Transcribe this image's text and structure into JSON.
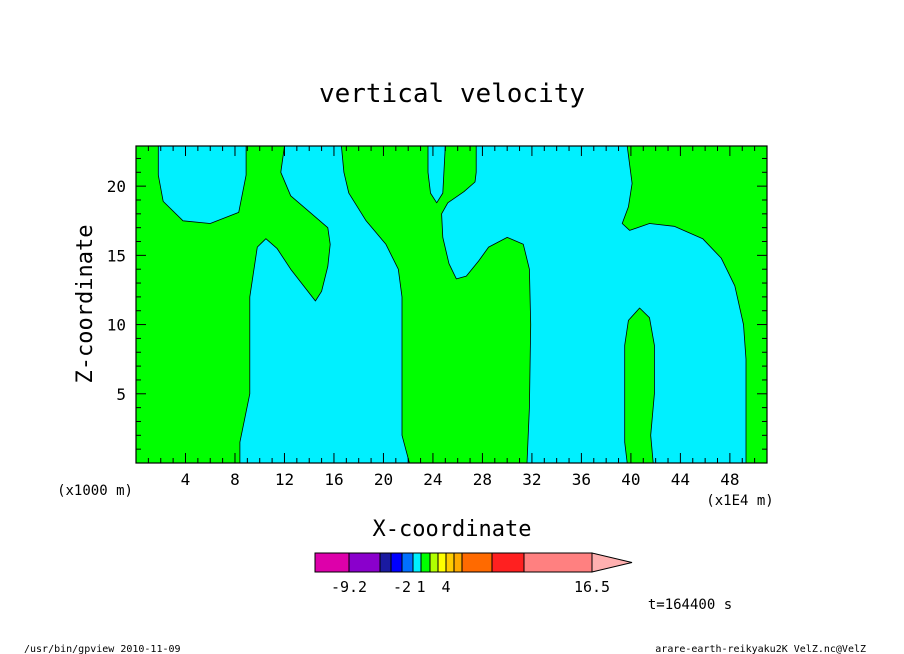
{
  "chart_data": {
    "type": "heatmap",
    "title": "vertical velocity",
    "xlabel": "X-coordinate",
    "ylabel": "Z-coordinate",
    "x_unit_left": "(x1000 m)",
    "x_unit_right": "(x1E4 m)",
    "xlim": [
      0,
      51
    ],
    "ylim": [
      0,
      22.9
    ],
    "x_ticks": [
      4,
      8,
      12,
      16,
      20,
      24,
      28,
      32,
      36,
      40,
      44,
      48
    ],
    "y_ticks": [
      5,
      10,
      15,
      20
    ],
    "regions_colors": {
      "positive": "#00ff00",
      "negative": "#00f0ff"
    },
    "negative_regions": [
      {
        "name": "neg-region-1",
        "outline": [
          [
            1.8,
            22.9
          ],
          [
            8.9,
            22.9
          ],
          [
            8.9,
            20.8
          ],
          [
            8.3,
            18.1
          ],
          [
            6.0,
            17.3
          ],
          [
            3.8,
            17.5
          ],
          [
            2.2,
            18.9
          ],
          [
            1.8,
            20.8
          ]
        ]
      },
      {
        "name": "neg-region-2",
        "outline": [
          [
            8.4,
            0
          ],
          [
            22.1,
            0
          ],
          [
            21.5,
            2.0
          ],
          [
            21.5,
            12.0
          ],
          [
            21.2,
            14.0
          ],
          [
            20.2,
            15.8
          ],
          [
            18.6,
            17.5
          ],
          [
            17.2,
            19.5
          ],
          [
            16.8,
            21.0
          ],
          [
            16.6,
            22.9
          ],
          [
            12.0,
            22.9
          ],
          [
            11.7,
            21.0
          ],
          [
            12.5,
            19.3
          ],
          [
            14.2,
            18.0
          ],
          [
            15.5,
            17.0
          ],
          [
            15.7,
            15.8
          ],
          [
            15.5,
            14.2
          ],
          [
            15.0,
            12.4
          ],
          [
            14.5,
            11.7
          ],
          [
            12.5,
            14.0
          ],
          [
            11.4,
            15.5
          ],
          [
            10.5,
            16.2
          ],
          [
            9.8,
            15.6
          ],
          [
            9.2,
            12.0
          ],
          [
            9.2,
            5.0
          ],
          [
            8.4,
            1.5
          ]
        ]
      },
      {
        "name": "neg-region-3",
        "outline": [
          [
            23.6,
            22.9
          ],
          [
            25.0,
            22.9
          ],
          [
            24.8,
            19.5
          ],
          [
            24.3,
            18.8
          ],
          [
            23.8,
            19.5
          ],
          [
            23.6,
            21.0
          ]
        ]
      },
      {
        "name": "neg-region-4",
        "outline": [
          [
            27.5,
            22.9
          ],
          [
            39.7,
            22.9
          ],
          [
            40.1,
            20.2
          ],
          [
            39.8,
            18.5
          ],
          [
            39.3,
            17.3
          ],
          [
            39.9,
            16.8
          ],
          [
            41.5,
            17.3
          ],
          [
            43.5,
            17.1
          ],
          [
            45.8,
            16.2
          ],
          [
            47.3,
            14.8
          ],
          [
            48.4,
            12.8
          ],
          [
            49.1,
            10.0
          ],
          [
            49.3,
            7.5
          ],
          [
            49.3,
            0
          ],
          [
            41.8,
            0
          ],
          [
            41.6,
            2.0
          ],
          [
            41.9,
            5.0
          ],
          [
            41.9,
            8.5
          ],
          [
            41.5,
            10.5
          ],
          [
            40.7,
            11.2
          ],
          [
            39.8,
            10.3
          ],
          [
            39.5,
            8.5
          ],
          [
            39.5,
            1.5
          ],
          [
            39.7,
            0
          ],
          [
            31.6,
            0
          ],
          [
            31.8,
            4.0
          ],
          [
            31.9,
            10.0
          ],
          [
            31.8,
            14.0
          ],
          [
            31.3,
            15.8
          ],
          [
            30.0,
            16.3
          ],
          [
            28.5,
            15.6
          ],
          [
            27.7,
            14.6
          ],
          [
            26.7,
            13.5
          ],
          [
            25.9,
            13.3
          ],
          [
            25.3,
            14.4
          ],
          [
            24.8,
            16.3
          ],
          [
            24.7,
            18.0
          ],
          [
            25.2,
            18.8
          ],
          [
            26.5,
            19.6
          ],
          [
            27.4,
            20.3
          ],
          [
            27.5,
            21.0
          ]
        ]
      }
    ],
    "colorbar": {
      "colors": [
        "#dd00aa",
        "#8a00cc",
        "#1a1aa0",
        "#0000ff",
        "#0070ff",
        "#00f0ff",
        "#00ff00",
        "#b0ff00",
        "#ffff00",
        "#ffcc00",
        "#ffaa00",
        "#ff6a00",
        "#ff2020",
        "#ff8080",
        "#ffb0b0"
      ],
      "tick_labels": [
        "-9.2",
        "-2",
        "1",
        "4",
        "16.5"
      ]
    }
  },
  "footer": {
    "timestamp": "t=164400 s",
    "program": "/usr/bin/gpview   2010-11-09",
    "filename": "arare-earth-reikyaku2K_VelZ.nc@VelZ"
  }
}
